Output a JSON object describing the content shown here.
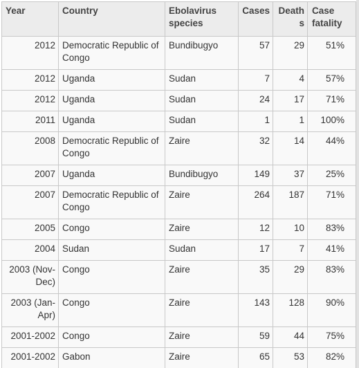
{
  "headers": {
    "year": "Year",
    "country": "Country",
    "species": "Ebolavirus species",
    "cases": "Cases",
    "deaths": "Deaths",
    "fatality": "Case fatality"
  },
  "rows": [
    {
      "year": "2012",
      "country": "Democratic Republic of Congo",
      "species": "Bundibugyo",
      "cases": "57",
      "deaths": "29",
      "fatality": "51%"
    },
    {
      "year": "2012",
      "country": "Uganda",
      "species": "Sudan",
      "cases": "7",
      "deaths": "4",
      "fatality": "57%"
    },
    {
      "year": "2012",
      "country": "Uganda",
      "species": "Sudan",
      "cases": "24",
      "deaths": "17",
      "fatality": "71%"
    },
    {
      "year": "2011",
      "country": "Uganda",
      "species": "Sudan",
      "cases": "1",
      "deaths": "1",
      "fatality": "100%"
    },
    {
      "year": "2008",
      "country": "Democratic Republic of Congo",
      "species": "Zaire",
      "cases": "32",
      "deaths": "14",
      "fatality": "44%"
    },
    {
      "year": "2007",
      "country": "Uganda",
      "species": "Bundibugyo",
      "cases": "149",
      "deaths": "37",
      "fatality": "25%"
    },
    {
      "year": "2007",
      "country": "Democratic Republic of Congo",
      "species": "Zaire",
      "cases": "264",
      "deaths": "187",
      "fatality": "71%"
    },
    {
      "year": "2005",
      "country": "Congo",
      "species": "Zaire",
      "cases": "12",
      "deaths": "10",
      "fatality": "83%"
    },
    {
      "year": "2004",
      "country": "Sudan",
      "species": "Sudan",
      "cases": "17",
      "deaths": "7",
      "fatality": "41%"
    },
    {
      "year": "2003 (Nov-Dec)",
      "country": "Congo",
      "species": "Zaire",
      "cases": "35",
      "deaths": "29",
      "fatality": "83%"
    },
    {
      "year": "2003 (Jan-Apr)",
      "country": "Congo",
      "species": "Zaire",
      "cases": "143",
      "deaths": "128",
      "fatality": "90%"
    },
    {
      "year": "2001-2002",
      "country": "Congo",
      "species": "Zaire",
      "cases": "59",
      "deaths": "44",
      "fatality": "75%"
    },
    {
      "year": "2001-2002",
      "country": "Gabon",
      "species": "Zaire",
      "cases": "65",
      "deaths": "53",
      "fatality": "82%"
    }
  ]
}
